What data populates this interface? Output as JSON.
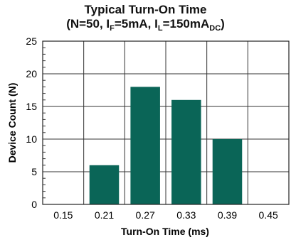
{
  "chart_data": {
    "type": "bar",
    "title": "Typical Turn-On Time",
    "subtitle_parts": {
      "open": "(N=50, I",
      "sub_f": "F",
      "mid1": "=5mA, I",
      "sub_l": "L",
      "mid2": "=150mA",
      "sub_dc": "DC",
      "close": ")"
    },
    "xlabel": "Turn-On Time (ms)",
    "ylabel": "Device Count (N)",
    "categories": [
      "0.15",
      "0.21",
      "0.27",
      "0.33",
      "0.39",
      "0.45"
    ],
    "values": [
      0,
      6,
      18,
      16,
      10,
      0
    ],
    "ylim": [
      0,
      25
    ],
    "yticks": [
      0,
      5,
      10,
      15,
      20,
      25
    ],
    "grid": true,
    "bar_color": "#0a6557"
  }
}
